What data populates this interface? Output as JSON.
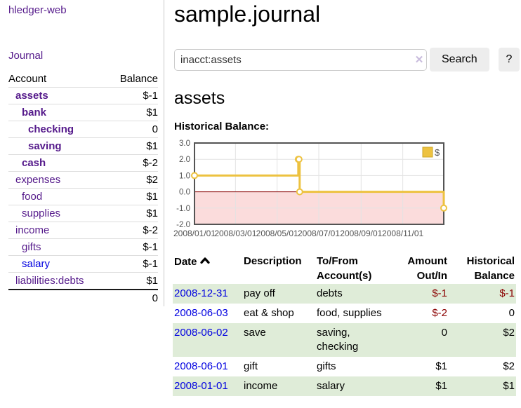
{
  "colors": {
    "link_purple": "#551a8b",
    "link_blue": "#0000e0",
    "negative_strong": "#8b0000",
    "negative_soft": "#c47e7e",
    "row_green": "#dfecd8",
    "series_gold": "#edc240",
    "negative_region_pink": "#fbdcdc",
    "zero_line_red": "#8b0000",
    "grid_gray": "#e3e3e3",
    "chart_border": "#545454"
  },
  "sidebar": {
    "brand": "hledger-web",
    "nav_journal": "Journal",
    "accounts_table": {
      "headers": [
        "Account",
        "Balance"
      ],
      "rows": [
        {
          "name": "assets",
          "indent": 0,
          "bold": true,
          "balance": "$-1",
          "style": "neg-strong"
        },
        {
          "name": "bank",
          "indent": 1,
          "bold": true,
          "balance": "$1",
          "style": "pos"
        },
        {
          "name": "checking",
          "indent": 2,
          "bold": true,
          "balance": "0",
          "style": "pos"
        },
        {
          "name": "saving",
          "indent": 2,
          "bold": true,
          "balance": "$1",
          "style": "pos"
        },
        {
          "name": "cash",
          "indent": 1,
          "bold": true,
          "balance": "$-2",
          "style": "neg-strong"
        },
        {
          "name": "expenses",
          "indent": 0,
          "bold": false,
          "balance": "$2",
          "style": "pos"
        },
        {
          "name": "food",
          "indent": 1,
          "bold": false,
          "balance": "$1",
          "style": "pos"
        },
        {
          "name": "supplies",
          "indent": 1,
          "bold": false,
          "balance": "$1",
          "style": "pos"
        },
        {
          "name": "income",
          "indent": 0,
          "bold": false,
          "balance": "$-2",
          "style": "neg-soft"
        },
        {
          "name": "gifts",
          "indent": 1,
          "bold": false,
          "balance": "$-1",
          "style": "neg-soft"
        },
        {
          "name": "salary",
          "indent": 1,
          "bold": false,
          "link_color": "blue",
          "balance": "$-1",
          "style": "neg-soft"
        },
        {
          "name": "liabilities:debts",
          "indent": 0,
          "bold": false,
          "balance": "$1",
          "style": "pos"
        }
      ],
      "total": "0"
    }
  },
  "header": {
    "title": "sample.journal"
  },
  "search": {
    "value": "inacct:assets",
    "clear_icon": "✕",
    "button_label": "Search",
    "help_label": "?"
  },
  "account_page": {
    "heading": "assets",
    "chart_title": "Historical Balance:"
  },
  "chart_data": {
    "type": "line",
    "mode": "step-after",
    "title": "Historical Balance",
    "series": [
      {
        "name": "$",
        "color": "#edc240",
        "points": [
          {
            "x": "2008-01-01",
            "y": 1
          },
          {
            "x": "2008-06-01",
            "y": 2
          },
          {
            "x": "2008-06-02",
            "y": 2
          },
          {
            "x": "2008-06-03",
            "y": 0
          },
          {
            "x": "2008-12-31",
            "y": -1
          }
        ]
      }
    ],
    "xlim": [
      "2008-01-01",
      "2008-12-31"
    ],
    "ylim": [
      -2,
      3
    ],
    "yticks": [
      3,
      2,
      1,
      0,
      -1,
      -2
    ],
    "ytick_labels": [
      "3.0",
      "2.0",
      "1.0",
      "0.0",
      "-1.0",
      "-2.0"
    ],
    "xticks": [
      "2008-01-01",
      "2008-03-01",
      "2008-05-01",
      "2008-07-01",
      "2008-09-01",
      "2008-11-01"
    ],
    "xtick_labels": [
      "2008/01/01",
      "2008/03/01",
      "2008/05/01",
      "2008/07/01",
      "2008/09/01",
      "2008/11/01"
    ],
    "legend": {
      "label": "$",
      "position": "top-right"
    },
    "grid": true,
    "negative_region_shaded": true
  },
  "register_table": {
    "headers": {
      "date": "Date",
      "sort_direction": "ascending",
      "description": "Description",
      "tofrom": "To/From Account(s)",
      "amount": "Amount Out/In",
      "balance": "Historical Balance"
    },
    "rows": [
      {
        "date": "2008-12-31",
        "description": "pay off",
        "accounts": "debts",
        "amount": "$-1",
        "amount_negative": true,
        "balance": "$-1",
        "balance_negative": true,
        "highlight": true
      },
      {
        "date": "2008-06-03",
        "description": "eat & shop",
        "accounts": "food, supplies",
        "amount": "$-2",
        "amount_negative": true,
        "balance": "0",
        "balance_negative": false,
        "highlight": false
      },
      {
        "date": "2008-06-02",
        "description": "save",
        "accounts": "saving, checking",
        "amount": "0",
        "amount_negative": false,
        "balance": "$2",
        "balance_negative": false,
        "highlight": true
      },
      {
        "date": "2008-06-01",
        "description": "gift",
        "accounts": "gifts",
        "amount": "$1",
        "amount_negative": false,
        "balance": "$2",
        "balance_negative": false,
        "highlight": false
      },
      {
        "date": "2008-01-01",
        "description": "income",
        "accounts": "salary",
        "amount": "$1",
        "amount_negative": false,
        "balance": "$1",
        "balance_negative": false,
        "highlight": true
      }
    ]
  }
}
